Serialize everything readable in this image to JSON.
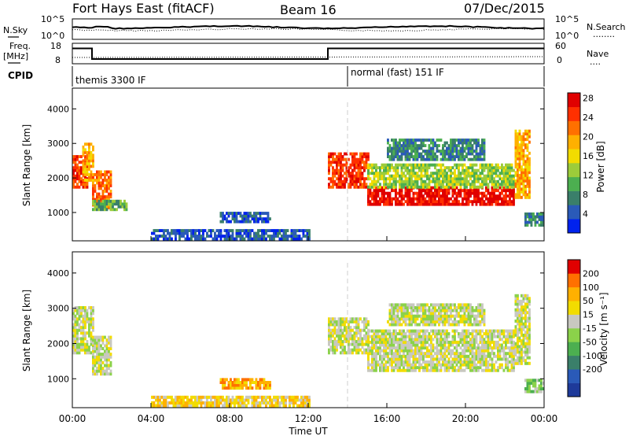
{
  "header": {
    "station": "Fort Hays East (fitACF)",
    "beam": "Beam 16",
    "date": "07/Dec/2015"
  },
  "labels": {
    "nsky": "N.Sky",
    "nsearch": "N.Search",
    "freq": "Freq.",
    "mhz": "[MHz]",
    "nave": "Nave",
    "cpid": "CPID",
    "dotline": "........",
    "dotline_short": "....",
    "time_ut": "Time UT",
    "slant_range": "Slant Range [km]",
    "power": "Power [dB]",
    "velocity": "Velocity [m s⁻¹]"
  },
  "noise_panel": {
    "left_ticks": [
      "10^5",
      "10^0"
    ],
    "right_ticks": [
      "10^5",
      "10^0"
    ]
  },
  "freq_panel": {
    "left_ticks": [
      "18",
      "8"
    ],
    "right_ticks": [
      "60",
      "0"
    ],
    "freq_segments": [
      {
        "t0": 0,
        "t1": 1.0,
        "freq_mhz": 15.5
      },
      {
        "t0": 1.0,
        "t1": 13.0,
        "freq_mhz": 10.3
      },
      {
        "t0": 13.0,
        "t1": 24.0,
        "freq_mhz": 15.5
      }
    ]
  },
  "cpid_panel": {
    "segments": [
      {
        "t0": 0,
        "label": "themis 3300 IF"
      },
      {
        "t0": 14.0,
        "label": "normal (fast) 151 IF"
      }
    ]
  },
  "chart_data": [
    {
      "type": "heatmap",
      "name": "Power",
      "ylabel": "Slant Range [km]",
      "xlabel": "Time UT",
      "xlim": [
        0,
        24
      ],
      "ylim": [
        180,
        4600
      ],
      "yticks": [
        1000,
        2000,
        3000,
        4000
      ],
      "xtick_labels": [
        "00:00",
        "04:00",
        "08:00",
        "12:00",
        "16:00",
        "20:00",
        "00:00"
      ],
      "colorbar": {
        "label": "Power [dB]",
        "tick_labels": [
          "4",
          "8",
          "12",
          "16",
          "20",
          "24",
          "28"
        ],
        "colors": [
          "#0022ee",
          "#2a5ab8",
          "#3a7f6a",
          "#4caf50",
          "#9ccc3a",
          "#f2dc00",
          "#ffb000",
          "#ff7000",
          "#ff3000",
          "#e00000"
        ]
      },
      "echo_regions": [
        {
          "t0": 0.0,
          "t1": 0.75,
          "r0": 1700,
          "r1": 2600,
          "level": 8
        },
        {
          "t0": 0.5,
          "t1": 1.0,
          "r0": 1900,
          "r1": 3000,
          "level": 6
        },
        {
          "t0": 1.0,
          "t1": 2.0,
          "r0": 1100,
          "r1": 2200,
          "level": 7
        },
        {
          "t0": 1.0,
          "t1": 2.8,
          "r0": 1050,
          "r1": 1300,
          "level": 3
        },
        {
          "t0": 7.5,
          "t1": 10.0,
          "r0": 700,
          "r1": 1000,
          "level": 1
        },
        {
          "t0": 4.0,
          "t1": 12.0,
          "r0": 200,
          "r1": 450,
          "level": 1
        },
        {
          "t0": 13.0,
          "t1": 15.0,
          "r0": 1700,
          "r1": 2700,
          "level": 8
        },
        {
          "t0": 15.0,
          "t1": 22.5,
          "r0": 1200,
          "r1": 1700,
          "level": 9
        },
        {
          "t0": 15.0,
          "t1": 22.5,
          "r0": 1700,
          "r1": 2400,
          "level": 4
        },
        {
          "t0": 16.0,
          "t1": 21.0,
          "r0": 2500,
          "r1": 3100,
          "level": 2
        },
        {
          "t0": 22.5,
          "t1": 23.3,
          "r0": 1400,
          "r1": 3400,
          "level": 6
        },
        {
          "t0": 23.0,
          "t1": 24.0,
          "r0": 600,
          "r1": 1000,
          "level": 2
        }
      ]
    },
    {
      "type": "heatmap",
      "name": "Velocity",
      "ylabel": "Slant Range [km]",
      "xlabel": "Time UT",
      "xlim": [
        0,
        24
      ],
      "ylim": [
        180,
        4600
      ],
      "yticks": [
        1000,
        2000,
        3000,
        4000
      ],
      "xtick_labels": [
        "00:00",
        "04:00",
        "08:00",
        "12:00",
        "16:00",
        "20:00",
        "00:00"
      ],
      "colorbar": {
        "label": "Velocity [m s⁻¹]",
        "tick_labels": [
          "200",
          "100",
          "50",
          "15",
          "-15",
          "-50",
          "-100",
          "-200"
        ],
        "colors": [
          "#1e3a9a",
          "#2a5ab8",
          "#3a7f6a",
          "#4caf50",
          "#8bd24a",
          "#c8c8c0",
          "#f2dc00",
          "#ffb000",
          "#ff7000",
          "#e00000"
        ]
      },
      "echo_regions": [
        {
          "t0": 0.0,
          "t1": 1.0,
          "r0": 1700,
          "r1": 3000,
          "level": 5
        },
        {
          "t0": 1.0,
          "t1": 2.0,
          "r0": 1100,
          "r1": 2200,
          "level": 5
        },
        {
          "t0": 7.5,
          "t1": 10.0,
          "r0": 700,
          "r1": 1000,
          "level": 7
        },
        {
          "t0": 4.0,
          "t1": 12.0,
          "r0": 200,
          "r1": 450,
          "level": 6
        },
        {
          "t0": 13.0,
          "t1": 15.0,
          "r0": 1700,
          "r1": 2700,
          "level": 5
        },
        {
          "t0": 15.0,
          "t1": 22.5,
          "r0": 1200,
          "r1": 2400,
          "level": 5
        },
        {
          "t0": 16.0,
          "t1": 21.0,
          "r0": 2500,
          "r1": 3100,
          "level": 5
        },
        {
          "t0": 22.5,
          "t1": 23.3,
          "r0": 1400,
          "r1": 3400,
          "level": 5
        },
        {
          "t0": 23.0,
          "t1": 24.0,
          "r0": 600,
          "r1": 1000,
          "level": 4
        }
      ]
    }
  ]
}
